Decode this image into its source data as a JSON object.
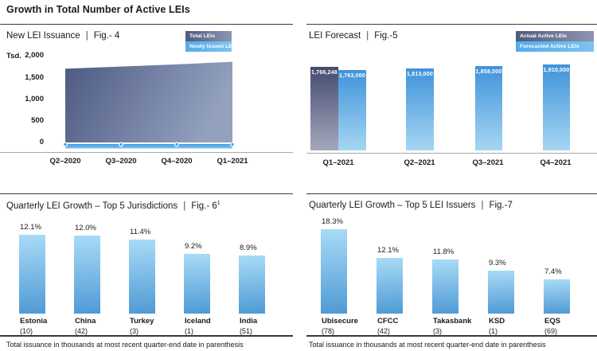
{
  "page": {
    "title": "Growth in Total Number of Active LEIs",
    "separator": "|"
  },
  "colors": {
    "dark_series_start": "#4d5a82",
    "dark_series_end": "#93a1bf",
    "light_blue_top": "#4093da",
    "light_blue_bottom": "#a6d6f3",
    "growth_bar_top": "#a9dbf7",
    "growth_bar_bottom": "#4f9ad5",
    "rule_dark": "#3c3c3c",
    "axis_gray": "#a8a8a8",
    "text": "#1a1a1a"
  },
  "chart_data": [
    {
      "id": "fig4",
      "type": "area",
      "title": "New LEI Issuance",
      "fig": "Fig.- 4",
      "unit_label": "Tsd.",
      "x": [
        "Q2–2020",
        "Q3–2020",
        "Q4–2020",
        "Q1–2021"
      ],
      "series": [
        {
          "name": "Total LEIs",
          "values": [
            1700,
            1750,
            1800,
            1860
          ]
        },
        {
          "name": "Newly Issued LEIs",
          "values": [
            60,
            55,
            60,
            65
          ]
        }
      ],
      "ylabel": "Tsd.",
      "ylim": [
        0,
        2000
      ],
      "yticks": [
        "2,000",
        "1,500",
        "1,000",
        "500",
        "0"
      ],
      "legend_position": "top-right",
      "grid": false
    },
    {
      "id": "fig5",
      "type": "bar",
      "title": "LEI Forecast",
      "fig": "Fig.-5",
      "categories": [
        "Q1–2021",
        "Q2–2021",
        "Q3–2021",
        "Q4–2021"
      ],
      "series": [
        {
          "name": "Actual Active LEIs",
          "values": [
            1766248
          ],
          "labels": [
            "1,766,248"
          ],
          "category_index": [
            0
          ]
        },
        {
          "name": "Forecasted Active LEIs",
          "values": [
            1763000,
            1813000,
            1858000,
            1910000
          ],
          "labels": [
            "1,763,000",
            "1,813,000",
            "1,858,000",
            "1,910,000"
          ]
        }
      ],
      "legend_position": "top-right",
      "axis_truncated": true
    },
    {
      "id": "fig6",
      "type": "bar",
      "title": "Quarterly LEI Growth – Top 5 Jurisdictions",
      "fig": "Fig.- 6",
      "fig_superscript": "1",
      "categories": [
        "Estonia",
        "China",
        "Turkey",
        "Iceland",
        "India"
      ],
      "counts": [
        "(10)",
        "(42)",
        "(3)",
        "(1)",
        "(51)"
      ],
      "values": [
        12.1,
        12.0,
        11.4,
        9.2,
        8.9
      ],
      "labels": [
        "12.1%",
        "12.0%",
        "11.4%",
        "9.2%",
        "8.9%"
      ],
      "footnote": "Total issuance in thousands at most recent quarter-end date in parenthesis"
    },
    {
      "id": "fig7",
      "type": "bar",
      "title": "Quarterly LEI Growth – Top 5 LEI Issuers",
      "fig": "Fig.-7",
      "categories": [
        "Ubisecure",
        "CFCC",
        "Takasbank",
        "KSD",
        "EQS"
      ],
      "counts": [
        "(78)",
        "(42)",
        "(3)",
        "(1)",
        "(69)"
      ],
      "values": [
        18.3,
        12.1,
        11.8,
        9.3,
        7.4
      ],
      "labels": [
        "18.3%",
        "12.1%",
        "11.8%",
        "9.3%",
        "7.4%"
      ],
      "footnote": "Total issuance in thousands at most recent quarter-end date in parenthesis"
    }
  ]
}
